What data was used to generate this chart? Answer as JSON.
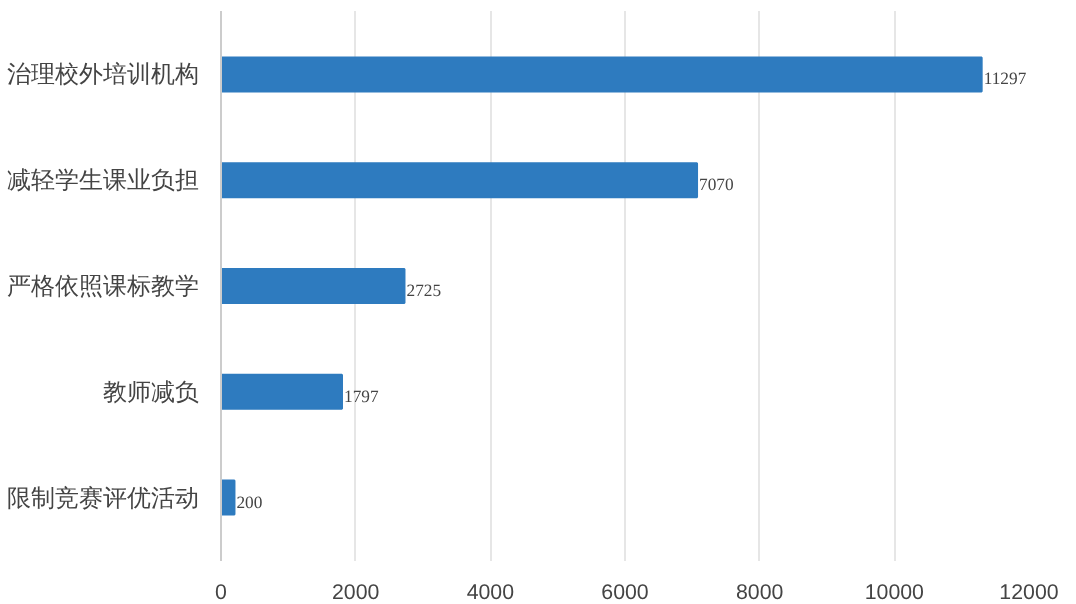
{
  "chart_data": {
    "type": "bar",
    "orientation": "horizontal",
    "categories": [
      "治理校外培训机构",
      "减轻学生课业负担",
      "严格依照课标教学",
      "教师减负",
      "限制竞赛评优活动"
    ],
    "values": [
      11297,
      7070,
      2725,
      1797,
      200
    ],
    "color": "#2e7bbf",
    "xlim": [
      0,
      12000
    ],
    "xticks": [
      0,
      2000,
      4000,
      6000,
      8000,
      10000,
      12000
    ],
    "grid": "x",
    "data_labels": true
  }
}
